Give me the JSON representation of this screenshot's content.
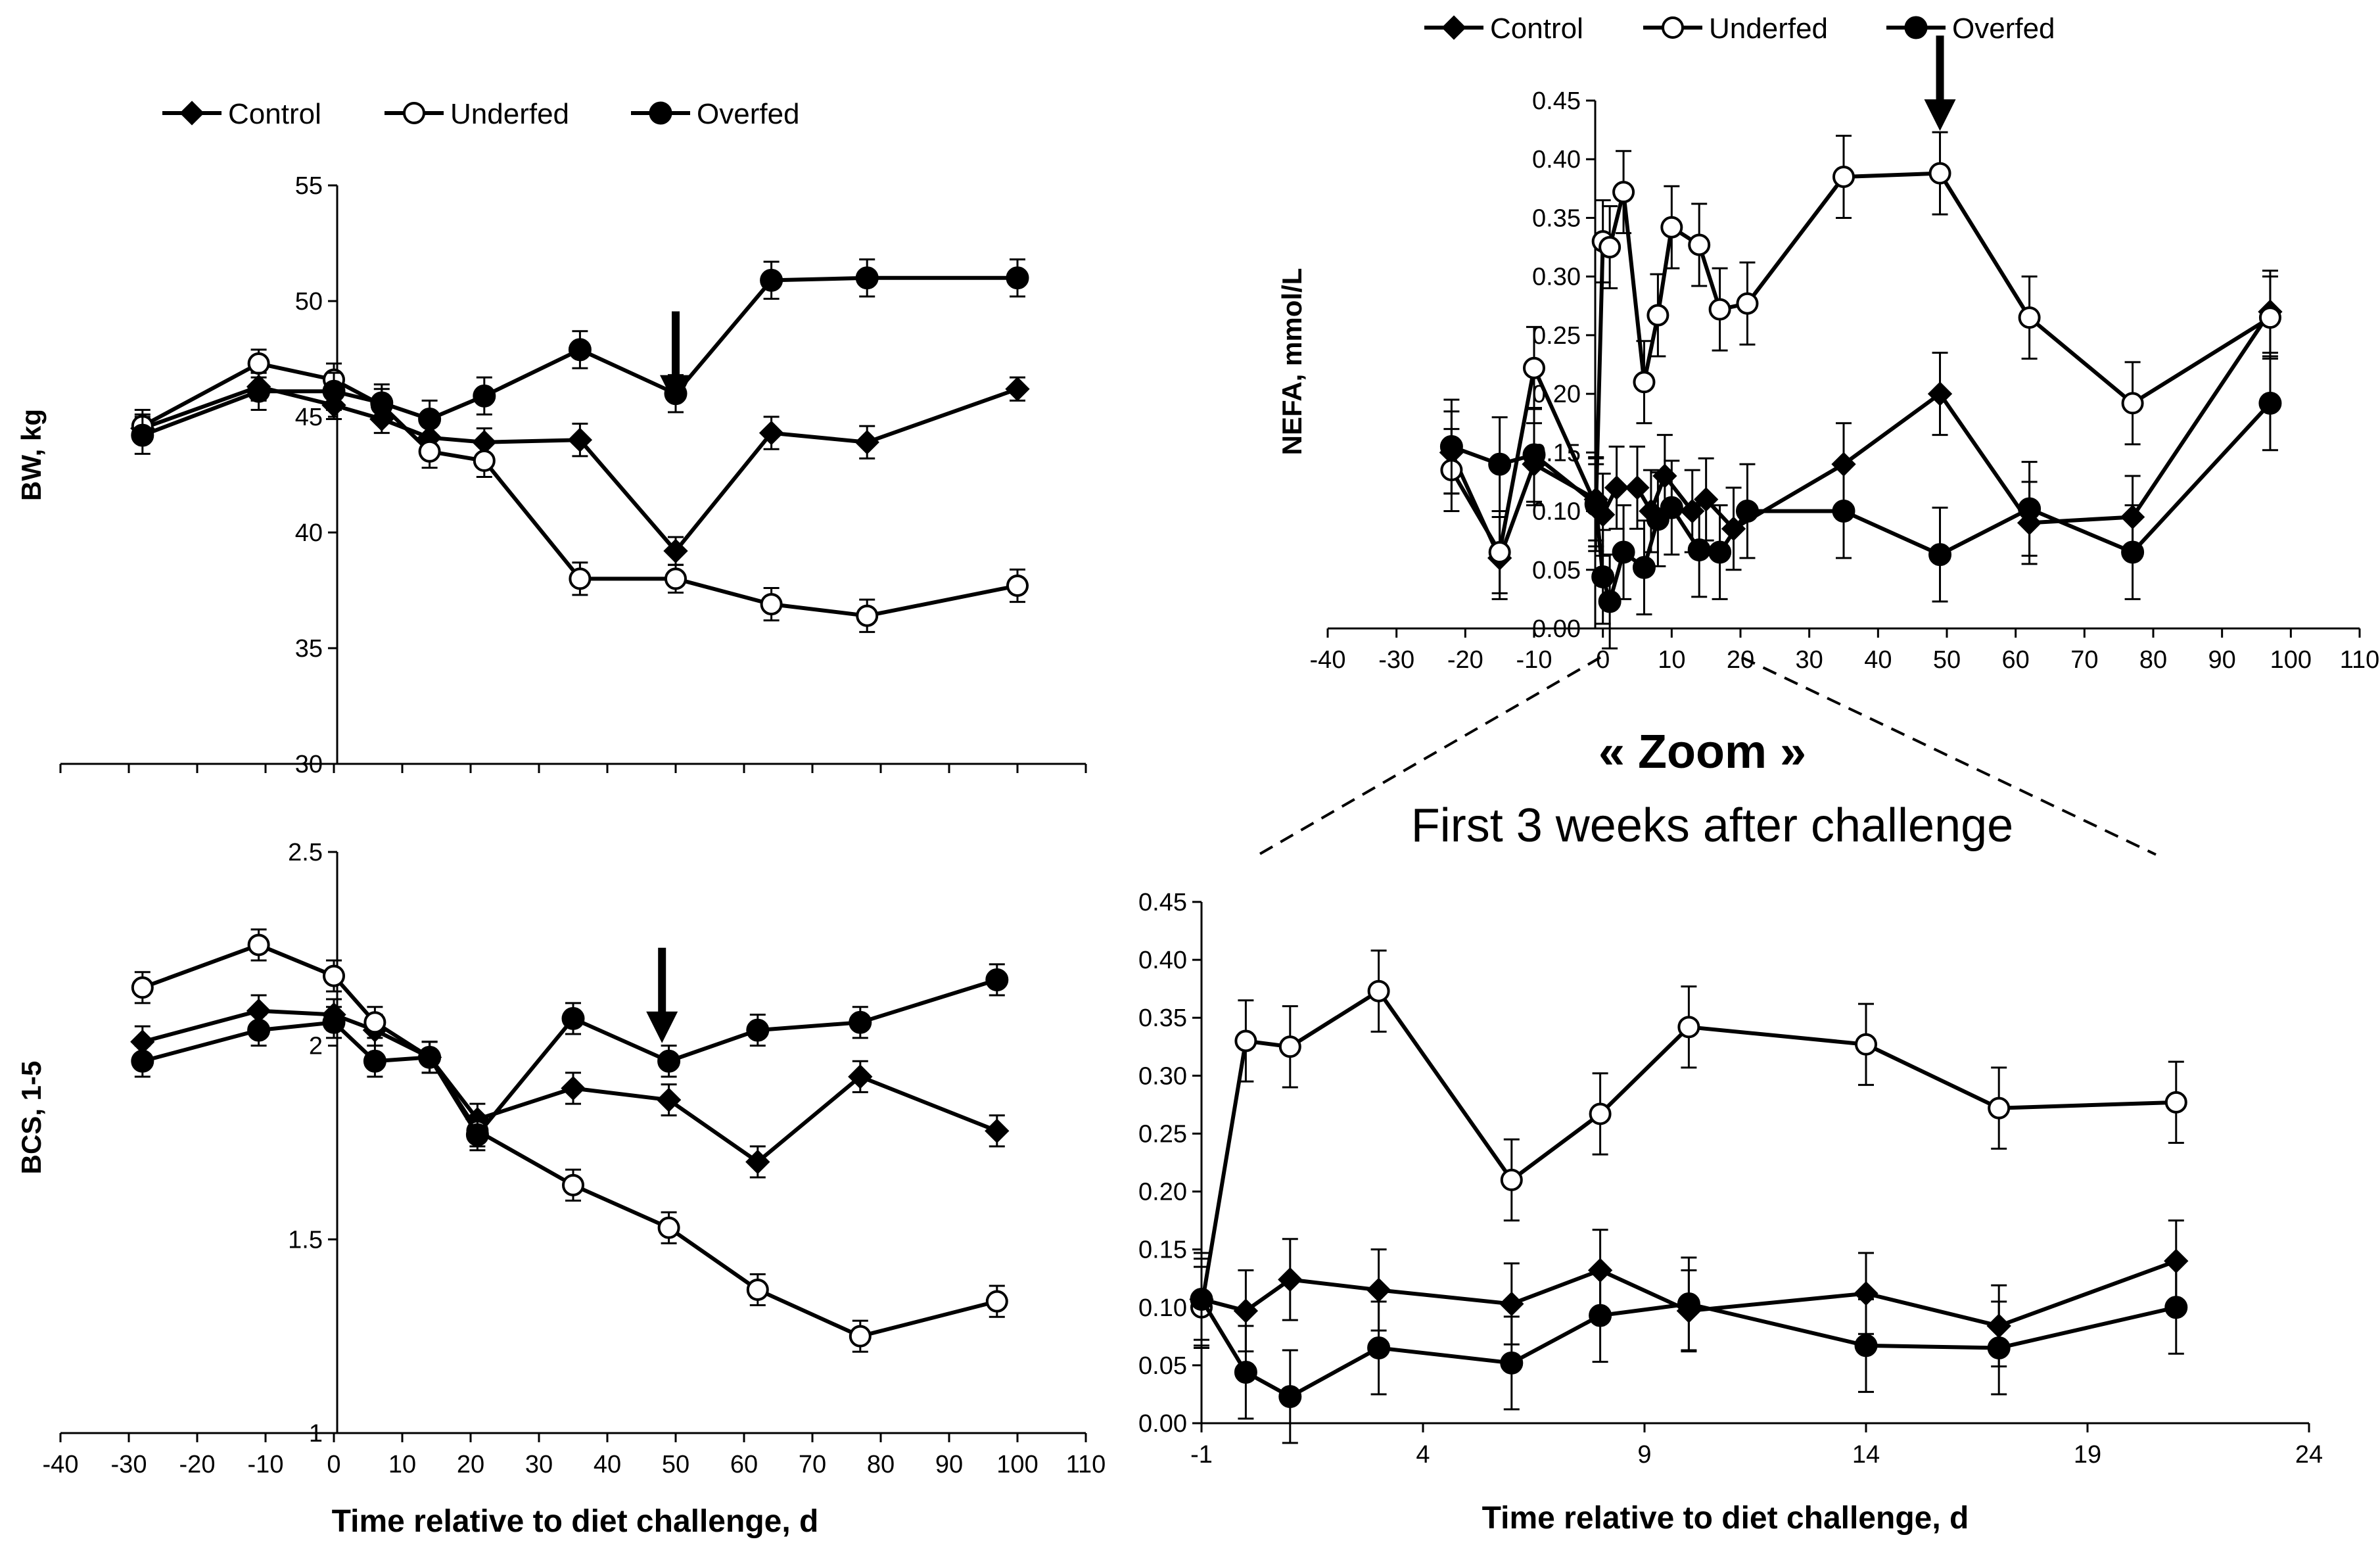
{
  "figure": {
    "zoom_title": "« Zoom »",
    "zoom_subtitle": "First 3 weeks after challenge",
    "xlabel": "Time relative to diet challenge, d"
  },
  "colors": {
    "line": "#000000",
    "background": "#ffffff",
    "open_marker_fill": "#ffffff"
  },
  "chart_data": [
    {
      "id": "bw",
      "type": "line",
      "title": "",
      "ylabel": "BW, kg",
      "xlabel": "",
      "xlim": [
        -40,
        110
      ],
      "ylim": [
        30,
        55
      ],
      "xticks": [
        -40,
        -30,
        -20,
        -10,
        0,
        10,
        20,
        30,
        40,
        50,
        60,
        70,
        80,
        90,
        100,
        110
      ],
      "yticks": [
        30,
        35,
        40,
        45,
        50,
        55
      ],
      "ytick_labels": [
        "30",
        "35",
        "40",
        "45",
        "50",
        "55"
      ],
      "show_xtick_labels": false,
      "legend": [
        "Control",
        "Underfed",
        "Overfed"
      ],
      "arrow_x": 50,
      "arrow_y": 47,
      "series": [
        {
          "name": "Control",
          "marker": "diamond",
          "x": [
            -28,
            -11,
            0,
            7,
            14,
            22,
            36,
            50,
            64,
            78,
            100
          ],
          "y": [
            44.5,
            46.3,
            45.5,
            44.9,
            44.1,
            43.9,
            44.0,
            39.2,
            44.3,
            43.9,
            46.2
          ],
          "err": [
            0.6,
            0.6,
            0.6,
            0.6,
            0.6,
            0.6,
            0.7,
            0.6,
            0.7,
            0.7,
            0.5
          ]
        },
        {
          "name": "Underfed",
          "marker": "open-circle",
          "x": [
            -28,
            -11,
            0,
            7,
            14,
            22,
            36,
            50,
            64,
            78,
            100
          ],
          "y": [
            44.6,
            47.3,
            46.6,
            45.5,
            43.5,
            43.1,
            38.0,
            38.0,
            36.9,
            36.4,
            37.7
          ],
          "err": [
            0.7,
            0.6,
            0.7,
            0.7,
            0.7,
            0.7,
            0.7,
            0.6,
            0.7,
            0.7,
            0.7
          ]
        },
        {
          "name": "Overfed",
          "marker": "filled-circle",
          "x": [
            -28,
            -11,
            0,
            7,
            14,
            22,
            36,
            50,
            64,
            78,
            100
          ],
          "y": [
            44.2,
            46.1,
            46.1,
            45.6,
            44.9,
            45.9,
            47.9,
            46.0,
            50.9,
            51.0,
            51.0
          ],
          "err": [
            0.8,
            0.8,
            0.8,
            0.8,
            0.8,
            0.8,
            0.8,
            0.8,
            0.8,
            0.8,
            0.8
          ]
        }
      ]
    },
    {
      "id": "bcs",
      "type": "line",
      "title": "",
      "ylabel": "BCS, 1-5",
      "xlabel": "Time relative to diet challenge, d",
      "xlim": [
        -40,
        110
      ],
      "ylim": [
        1,
        2.5
      ],
      "xticks": [
        -40,
        -30,
        -20,
        -10,
        0,
        10,
        20,
        30,
        40,
        50,
        60,
        70,
        80,
        90,
        100,
        110
      ],
      "yticks": [
        1,
        1.5,
        2,
        2.5
      ],
      "ytick_labels": [
        "1",
        "1.5",
        "2",
        "2.5"
      ],
      "show_xtick_labels": true,
      "legend": [],
      "arrow_x": 48,
      "arrow_y": 2.1,
      "series": [
        {
          "name": "Control",
          "marker": "diamond",
          "x": [
            -28,
            -11,
            0,
            6,
            14,
            21,
            35,
            49,
            62,
            77,
            97
          ],
          "y": [
            2.01,
            2.09,
            2.08,
            2.04,
            1.97,
            1.81,
            1.89,
            1.86,
            1.7,
            1.92,
            1.78
          ],
          "err": [
            0.04,
            0.04,
            0.04,
            0.04,
            0.04,
            0.04,
            0.04,
            0.04,
            0.04,
            0.04,
            0.04
          ]
        },
        {
          "name": "Underfed",
          "marker": "open-circle",
          "x": [
            -28,
            -11,
            0,
            6,
            14,
            21,
            35,
            49,
            62,
            77,
            97
          ],
          "y": [
            2.15,
            2.26,
            2.18,
            2.06,
            1.97,
            1.78,
            1.64,
            1.53,
            1.37,
            1.25,
            1.34
          ],
          "err": [
            0.04,
            0.04,
            0.04,
            0.04,
            0.04,
            0.04,
            0.04,
            0.04,
            0.04,
            0.04,
            0.04
          ]
        },
        {
          "name": "Overfed",
          "marker": "filled-circle",
          "x": [
            -28,
            -11,
            0,
            6,
            14,
            21,
            35,
            49,
            62,
            77,
            97
          ],
          "y": [
            1.96,
            2.04,
            2.06,
            1.96,
            1.97,
            1.77,
            2.07,
            1.96,
            2.04,
            2.06,
            2.17
          ],
          "err": [
            0.04,
            0.04,
            0.04,
            0.04,
            0.04,
            0.04,
            0.04,
            0.04,
            0.04,
            0.04,
            0.04
          ]
        }
      ]
    },
    {
      "id": "nefa",
      "type": "line",
      "title": "",
      "ylabel": "NEFA, mmol/L",
      "xlabel": "",
      "xlim": [
        -40,
        110
      ],
      "ylim": [
        0,
        0.45
      ],
      "xticks": [
        -40,
        -30,
        -20,
        -10,
        0,
        10,
        20,
        30,
        40,
        50,
        60,
        70,
        80,
        90,
        100,
        110
      ],
      "yticks": [
        0,
        0.05,
        0.1,
        0.15,
        0.2,
        0.25,
        0.3,
        0.35,
        0.4,
        0.45
      ],
      "ytick_labels": [
        "0.00",
        "0.05",
        "0.10",
        "0.15",
        "0.20",
        "0.25",
        "0.30",
        "0.35",
        "0.40",
        "0.45"
      ],
      "show_xtick_labels": true,
      "legend": [
        "Control",
        "Underfed",
        "Overfed"
      ],
      "arrow_x": 49,
      "arrow_y": 0.455,
      "series": [
        {
          "name": "Control",
          "marker": "diamond",
          "x": [
            -22,
            -15,
            -10,
            -1,
            0,
            2,
            5,
            7,
            9,
            13,
            15,
            19,
            35,
            49,
            62,
            77,
            97
          ],
          "y": [
            0.15,
            0.06,
            0.14,
            0.11,
            0.097,
            0.12,
            0.12,
            0.1,
            0.13,
            0.1,
            0.11,
            0.085,
            0.14,
            0.2,
            0.09,
            0.095,
            0.27
          ],
          "err": [
            0.035,
            0.035,
            0.035,
            0.035,
            0.035,
            0.035,
            0.035,
            0.035,
            0.035,
            0.035,
            0.035,
            0.035,
            0.035,
            0.035,
            0.035,
            0.035,
            0.035
          ]
        },
        {
          "name": "Underfed",
          "marker": "open-circle",
          "x": [
            -22,
            -15,
            -10,
            -1,
            0,
            1,
            3,
            6,
            8,
            10,
            14,
            17,
            21,
            35,
            49,
            62,
            77,
            97
          ],
          "y": [
            0.135,
            0.065,
            0.222,
            0.105,
            0.33,
            0.325,
            0.372,
            0.21,
            0.267,
            0.342,
            0.327,
            0.272,
            0.277,
            0.385,
            0.388,
            0.265,
            0.192,
            0.265
          ],
          "err": [
            0.035,
            0.035,
            0.035,
            0.035,
            0.035,
            0.035,
            0.035,
            0.035,
            0.035,
            0.035,
            0.035,
            0.035,
            0.035,
            0.035,
            0.035,
            0.035,
            0.035,
            0.035
          ]
        },
        {
          "name": "Overfed",
          "marker": "filled-circle",
          "x": [
            -22,
            -15,
            -10,
            -1,
            0,
            1,
            3,
            6,
            8,
            10,
            14,
            17,
            21,
            35,
            49,
            62,
            77,
            97
          ],
          "y": [
            0.155,
            0.14,
            0.148,
            0.106,
            0.044,
            0.023,
            0.065,
            0.052,
            0.093,
            0.103,
            0.067,
            0.065,
            0.1,
            0.1,
            0.063,
            0.102,
            0.065,
            0.192
          ],
          "err": [
            0.04,
            0.04,
            0.04,
            0.04,
            0.04,
            0.04,
            0.04,
            0.04,
            0.04,
            0.04,
            0.04,
            0.04,
            0.04,
            0.04,
            0.04,
            0.04,
            0.04,
            0.04
          ]
        }
      ]
    },
    {
      "id": "nefa-zoom",
      "type": "line",
      "title": "« Zoom » First 3 weeks after challenge",
      "ylabel": "",
      "xlabel": "Time relative to diet challenge, d",
      "xlim": [
        -1,
        24
      ],
      "ylim": [
        0,
        0.45
      ],
      "xticks": [
        -1,
        4,
        9,
        14,
        19,
        24
      ],
      "yticks": [
        0,
        0.05,
        0.1,
        0.15,
        0.2,
        0.25,
        0.3,
        0.35,
        0.4,
        0.45
      ],
      "ytick_labels": [
        "0.00",
        "0.05",
        "0.10",
        "0.15",
        "0.20",
        "0.25",
        "0.30",
        "0.35",
        "0.40",
        "0.45"
      ],
      "show_xtick_labels": true,
      "legend": [],
      "series": [
        {
          "name": "Control",
          "marker": "diamond",
          "x": [
            -1,
            0,
            1,
            3,
            6,
            8,
            10,
            14,
            17,
            21
          ],
          "y": [
            0.107,
            0.097,
            0.124,
            0.115,
            0.103,
            0.132,
            0.097,
            0.112,
            0.084,
            0.14
          ],
          "err": [
            0.035,
            0.035,
            0.035,
            0.035,
            0.035,
            0.035,
            0.035,
            0.035,
            0.035,
            0.035
          ]
        },
        {
          "name": "Underfed",
          "marker": "open-circle",
          "x": [
            -1,
            0,
            1,
            3,
            6,
            8,
            10,
            14,
            17,
            21
          ],
          "y": [
            0.1,
            0.33,
            0.325,
            0.373,
            0.21,
            0.267,
            0.342,
            0.327,
            0.272,
            0.277
          ],
          "err": [
            0.035,
            0.035,
            0.035,
            0.035,
            0.035,
            0.035,
            0.035,
            0.035,
            0.035,
            0.035
          ]
        },
        {
          "name": "Overfed",
          "marker": "filled-circle",
          "x": [
            -1,
            0,
            1,
            3,
            6,
            8,
            10,
            14,
            17,
            21
          ],
          "y": [
            0.107,
            0.044,
            0.023,
            0.065,
            0.052,
            0.093,
            0.103,
            0.067,
            0.065,
            0.1
          ],
          "err": [
            0.04,
            0.04,
            0.04,
            0.04,
            0.04,
            0.04,
            0.04,
            0.04,
            0.04,
            0.04
          ]
        }
      ]
    }
  ]
}
